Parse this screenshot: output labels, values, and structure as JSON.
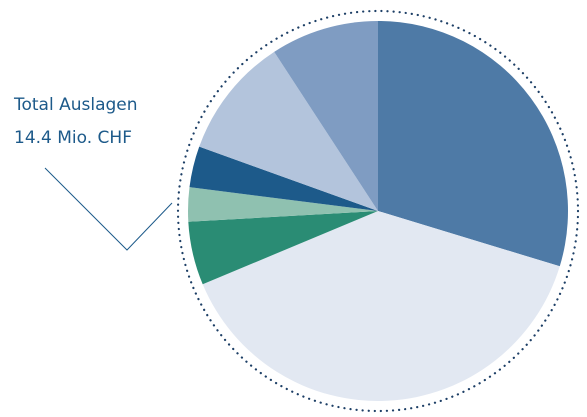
{
  "chart_data": {
    "type": "pie",
    "annotation": [
      "Total Auslagen",
      "14.4 Mio. CHF"
    ],
    "values": [
      29.7,
      39.0,
      5.4,
      2.9,
      3.5,
      10.3,
      9.2
    ],
    "colors": [
      "#4e7aa6",
      "#e2e8f2",
      "#2a8c74",
      "#8fc1b0",
      "#1d5a8a",
      "#b3c4dc",
      "#7f9cc2"
    ],
    "start_angle": 0,
    "direction": "clockwise"
  }
}
